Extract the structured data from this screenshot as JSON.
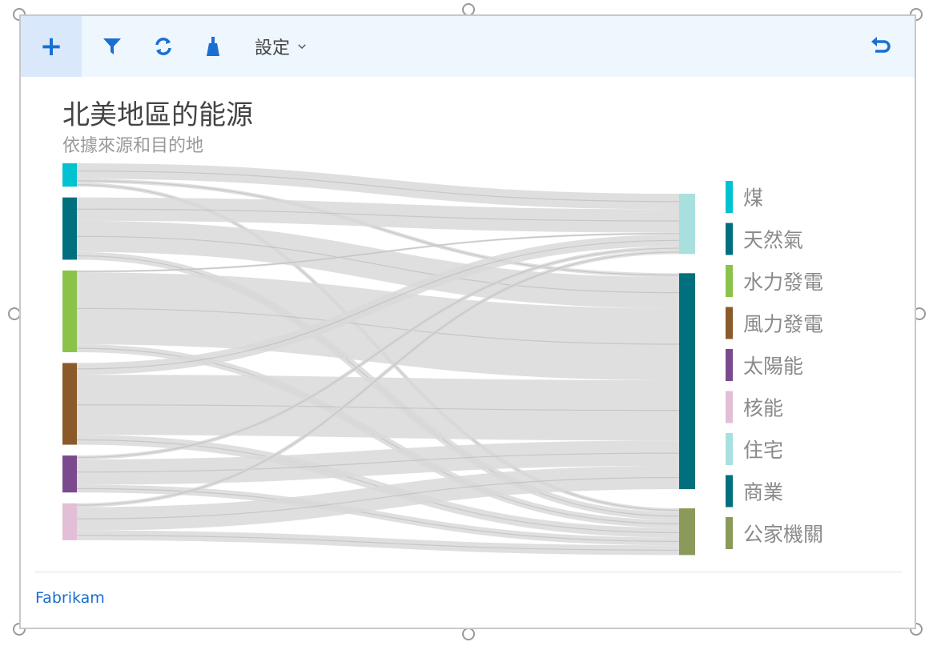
{
  "toolbar": {
    "settings_label": "設定",
    "icons": [
      "plus-icon",
      "filter-icon",
      "refresh-icon",
      "brush-icon",
      "chevron-down-icon",
      "undo-icon"
    ]
  },
  "footer": {
    "brand": "Fabrikam"
  },
  "colors": {
    "toolbar_bg": "#eef6fe",
    "accent": "#1a6fd1",
    "link": "#d9d9d9"
  },
  "chart_data": {
    "type": "sankey",
    "title": "北美地區的能源",
    "subtitle": "依據來源和目的地",
    "sources": [
      {
        "name": "煤",
        "color": "#00c2d1",
        "value": 12
      },
      {
        "name": "天然氣",
        "color": "#00707e",
        "value": 32
      },
      {
        "name": "水力發電",
        "color": "#8bc34a",
        "value": 42
      },
      {
        "name": "風力發電",
        "color": "#8b5a2b",
        "value": 42
      },
      {
        "name": "太陽能",
        "color": "#7b4a8e",
        "value": 19
      },
      {
        "name": "核能",
        "color": "#e2bfd6",
        "value": 19
      }
    ],
    "targets": [
      {
        "name": "住宅",
        "color": "#a8e0df",
        "value": 31
      },
      {
        "name": "商業",
        "color": "#00707e",
        "value": 111
      },
      {
        "name": "公家機關",
        "color": "#8a9a5b",
        "value": 24
      }
    ],
    "links": [
      {
        "source": "煤",
        "target": "住宅",
        "value": 8
      },
      {
        "source": "煤",
        "target": "商業",
        "value": 2
      },
      {
        "source": "煤",
        "target": "公家機關",
        "value": 2
      },
      {
        "source": "天然氣",
        "target": "住宅",
        "value": 12
      },
      {
        "source": "天然氣",
        "target": "商業",
        "value": 16
      },
      {
        "source": "天然氣",
        "target": "公家機關",
        "value": 4
      },
      {
        "source": "水力發電",
        "target": "住宅",
        "value": 1
      },
      {
        "source": "水力發電",
        "target": "商業",
        "value": 37
      },
      {
        "source": "水力發電",
        "target": "公家機關",
        "value": 4
      },
      {
        "source": "風力發電",
        "target": "住宅",
        "value": 6
      },
      {
        "source": "風力發電",
        "target": "商業",
        "value": 31
      },
      {
        "source": "風力發電",
        "target": "公家機關",
        "value": 5
      },
      {
        "source": "太陽能",
        "target": "住宅",
        "value": 2
      },
      {
        "source": "太陽能",
        "target": "商業",
        "value": 13
      },
      {
        "source": "太陽能",
        "target": "公家機關",
        "value": 4
      },
      {
        "source": "核能",
        "target": "住宅",
        "value": 2
      },
      {
        "source": "核能",
        "target": "商業",
        "value": 12
      },
      {
        "source": "核能",
        "target": "公家機關",
        "value": 5
      }
    ],
    "legend": [
      "煤",
      "天然氣",
      "水力發電",
      "風力發電",
      "太陽能",
      "核能",
      "住宅",
      "商業",
      "公家機關"
    ],
    "legend_placement": "right"
  }
}
